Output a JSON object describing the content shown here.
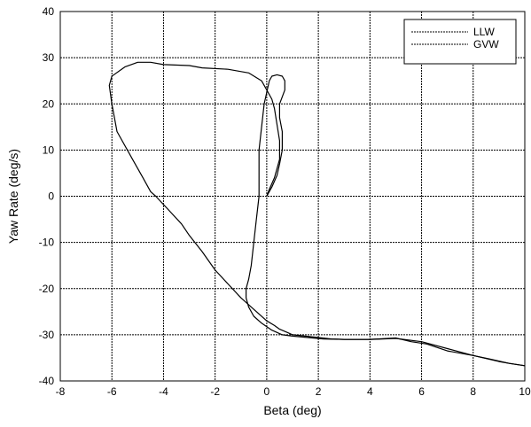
{
  "chart_data": {
    "type": "line",
    "title": "",
    "xlabel": "Beta (deg)",
    "ylabel": "Yaw Rate (deg/s)",
    "xlim": [
      -8,
      10
    ],
    "ylim": [
      -40,
      40
    ],
    "xticks": [
      -8,
      -6,
      -4,
      -2,
      0,
      2,
      4,
      6,
      8,
      10
    ],
    "yticks": [
      -40,
      -30,
      -20,
      -10,
      0,
      10,
      20,
      30,
      40
    ],
    "xtick_labels": [
      "-8",
      "-6",
      "-4",
      "-2",
      "0",
      "2",
      "4",
      "6",
      "8",
      "10"
    ],
    "ytick_labels": [
      "-40",
      "-30",
      "-20",
      "-10",
      "0",
      "10",
      "20",
      "30",
      "40"
    ],
    "grid": true,
    "legend_position": "top-right",
    "series": [
      {
        "name": "LLW",
        "color": "#000000",
        "x": [
          0.0,
          0.2,
          0.4,
          0.5,
          0.6,
          0.6,
          0.5,
          0.5,
          0.7,
          0.7,
          0.6,
          0.4,
          0.2,
          0.1,
          0.0,
          -0.1,
          -0.2,
          -0.3,
          -0.3,
          -0.3,
          -0.4,
          -0.5,
          -0.6,
          -0.7,
          -0.8,
          -0.8,
          -0.7,
          -0.5,
          -0.2,
          0.2,
          0.6,
          1.0,
          1.6,
          2.2,
          3.0,
          4.0,
          5.0,
          5.6,
          6.2,
          7.0,
          8.0,
          8.6,
          9.4,
          10.0
        ],
        "y": [
          0.0,
          2.0,
          4.5,
          7.0,
          10.0,
          14.0,
          17.0,
          20.0,
          23.0,
          25.0,
          26.0,
          26.3,
          26.0,
          25.0,
          22.5,
          20.0,
          15.0,
          10.0,
          5.0,
          0.0,
          -5.0,
          -10.0,
          -15.0,
          -18.0,
          -20.0,
          -22.0,
          -24.0,
          -26.0,
          -27.5,
          -29.0,
          -30.0,
          -30.3,
          -30.6,
          -30.9,
          -31.0,
          -31.0,
          -30.7,
          -31.5,
          -32.0,
          -33.5,
          -34.5,
          -35.2,
          -36.2,
          -36.7
        ]
      },
      {
        "name": "GVW",
        "color": "#000000",
        "x": [
          0.0,
          0.1,
          0.3,
          0.5,
          0.5,
          0.4,
          0.3,
          0.2,
          0.0,
          -0.2,
          -0.7,
          -1.5,
          -2.5,
          -3.0,
          -4.0,
          -4.5,
          -5.0,
          -5.5,
          -6.0,
          -6.1,
          -6.0,
          -5.8,
          -5.2,
          -4.8,
          -4.5,
          -4.3,
          -3.8,
          -3.3,
          -3.0,
          -2.5,
          -2.0,
          -1.5,
          -1.0,
          -0.5,
          0.0,
          0.3,
          0.5,
          0.8,
          1.0,
          1.5,
          2.0,
          2.5,
          3.0,
          3.5,
          4.0,
          4.5,
          5.0,
          6.0,
          7.0,
          8.0,
          9.0,
          9.4,
          10.0
        ],
        "y": [
          0.0,
          1.5,
          4.0,
          8.0,
          12.0,
          15.5,
          19.0,
          21.0,
          23.0,
          25.0,
          26.7,
          27.5,
          27.8,
          28.3,
          28.5,
          29.0,
          29.0,
          28.0,
          26.0,
          24.0,
          20.0,
          14.0,
          8.0,
          4.0,
          1.0,
          0.0,
          -3.0,
          -6.0,
          -8.5,
          -12.0,
          -16.0,
          -19.0,
          -22.0,
          -24.5,
          -27.0,
          -28.0,
          -28.8,
          -29.5,
          -30.0,
          -30.3,
          -30.6,
          -30.9,
          -31.0,
          -31.0,
          -31.0,
          -30.9,
          -30.8,
          -31.5,
          -33.0,
          -34.5,
          -35.8,
          -36.2,
          -36.7
        ]
      }
    ]
  }
}
